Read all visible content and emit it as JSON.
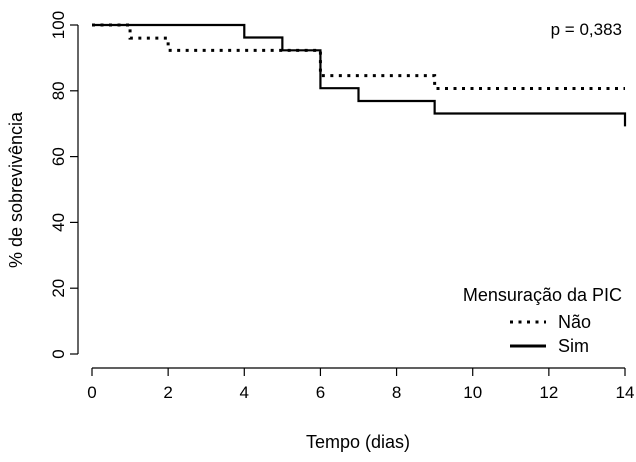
{
  "chart_data": {
    "type": "line",
    "title": "",
    "xlabel": "Tempo (dias)",
    "ylabel": "% de sobrevivência",
    "xlim": [
      0,
      14
    ],
    "ylim": [
      0,
      100
    ],
    "x_ticks": [
      0,
      2,
      4,
      6,
      8,
      10,
      12,
      14
    ],
    "y_ticks": [
      0,
      20,
      40,
      60,
      80,
      100
    ],
    "grid": false,
    "legend": {
      "title": "Mensuração da PIC",
      "position": "bottom-right"
    },
    "annotation": "p = 0,383",
    "series": [
      {
        "name": "Não",
        "style": "dotted",
        "color": "#000000",
        "step": true,
        "points": [
          [
            0,
            100
          ],
          [
            1,
            96
          ],
          [
            2,
            92.3
          ],
          [
            6,
            84.6
          ],
          [
            9,
            80.7
          ],
          [
            14,
            80.7
          ]
        ]
      },
      {
        "name": "Sim",
        "style": "solid",
        "color": "#000000",
        "step": true,
        "points": [
          [
            0,
            100
          ],
          [
            4,
            96.2
          ],
          [
            5,
            92.3
          ],
          [
            6,
            80.8
          ],
          [
            7,
            76.9
          ],
          [
            9,
            73.1
          ],
          [
            14,
            69.2
          ]
        ]
      }
    ]
  }
}
